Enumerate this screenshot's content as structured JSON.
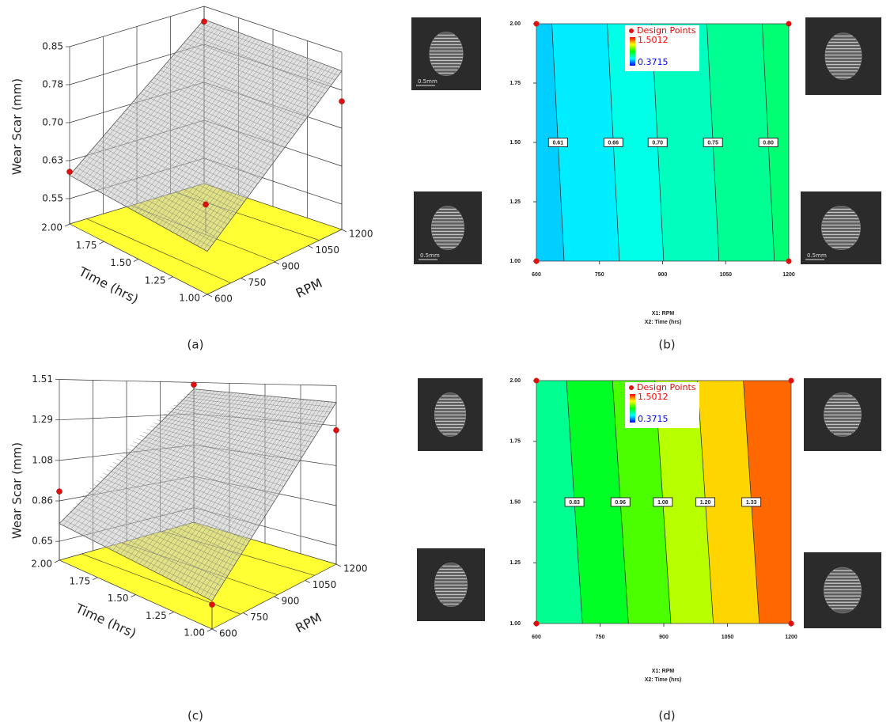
{
  "chart_data": [
    {
      "type": "surface3d",
      "caption": "(a)",
      "zlabel": "Wear Scar (mm)",
      "xlabel": "RPM",
      "ylabel": "Time (hrs)",
      "x": [
        600,
        1200
      ],
      "y": [
        1,
        2
      ],
      "z": [
        [
          0.585,
          0.813
        ],
        [
          0.596,
          0.824
        ]
      ],
      "xlim": [
        600,
        1200
      ],
      "xticks": [
        600,
        750,
        900,
        1050,
        1200
      ],
      "ylim": [
        1,
        2
      ],
      "yticks": [
        {
          "value": 1,
          "label": "1.00"
        },
        1.25,
        {
          "value": 1.5,
          "label": "1.50"
        },
        1.75,
        {
          "value": 2,
          "label": "2.00"
        }
      ],
      "zlim": [
        0.5,
        0.85
      ],
      "zticks": [
        0.55,
        {
          "value": 0.625,
          "label": "0.63"
        },
        {
          "value": 0.7,
          "label": "0.70"
        },
        {
          "value": 0.775,
          "label": "0.78"
        },
        0.85
      ],
      "surface_color": "#c8c8c8",
      "floor_color": "#ffff33",
      "point_color": "#e01010",
      "design_points": {
        "x": [
          600,
          900,
          1200,
          1200
        ],
        "y": [
          2,
          1.5,
          2,
          1
        ],
        "z": [
          0.603,
          0.556,
          0.82,
          0.753
        ]
      }
    },
    {
      "type": "contour",
      "caption": "(b)",
      "xlabel": "X1: RPM",
      "ylabel": "X2: Time (hrs)",
      "x": [
        600,
        1200
      ],
      "y": [
        1,
        2
      ],
      "z": [
        [
          0.585,
          0.813
        ],
        [
          0.596,
          0.824
        ]
      ],
      "xlim": [
        600,
        1200
      ],
      "xticks": [
        600,
        750,
        900,
        1050,
        1200
      ],
      "ylim": [
        1,
        2
      ],
      "yticks": [
        {
          "value": 1,
          "label": "1.00"
        },
        1.25,
        {
          "value": 1.5,
          "label": "1.50"
        },
        1.75,
        {
          "value": 2,
          "label": "2.00"
        }
      ],
      "contour_levels": [
        0.61,
        0.66,
        0.7,
        0.75,
        0.8
      ],
      "contour_labels": [
        "0.61",
        "0.66",
        "0.70",
        "0.75",
        "0.80"
      ],
      "legend_label": "Design Points",
      "colorbar_max": 1.5012,
      "colorbar_min": 0.3715,
      "point_color": "#e01010",
      "design_points": {
        "x": [
          600,
          600,
          1200,
          1200
        ],
        "y": [
          1,
          2,
          1,
          2
        ]
      },
      "micrograph_labels": [
        "0.5mm",
        "0.5mm",
        "0.5mm"
      ]
    },
    {
      "type": "surface3d",
      "caption": "(c)",
      "zlabel": "Wear Scar (mm)",
      "xlabel": "RPM",
      "ylabel": "Time (hrs)",
      "x": [
        600,
        1200
      ],
      "y": [
        1,
        2
      ],
      "z": [
        [
          0.7,
          1.42
        ],
        [
          0.745,
          1.465
        ]
      ],
      "xlim": [
        600,
        1200
      ],
      "xticks": [
        600,
        750,
        900,
        1050,
        1200
      ],
      "ylim": [
        1,
        2
      ],
      "yticks": [
        {
          "value": 1,
          "label": "1.00"
        },
        1.25,
        {
          "value": 1.5,
          "label": "1.50"
        },
        1.75,
        {
          "value": 2,
          "label": "2.00"
        }
      ],
      "zlim": [
        0.55,
        1.51
      ],
      "zticks": [
        0.65,
        {
          "value": 0.865,
          "label": "0.86"
        },
        1.08,
        {
          "value": 1.295,
          "label": "1.29"
        },
        1.51
      ],
      "surface_color": "#c8c8c8",
      "floor_color": "#ffff33",
      "point_color": "#e01010",
      "design_points": {
        "x": [
          600,
          1200,
          1200,
          600
        ],
        "y": [
          2,
          2,
          1,
          1
        ],
        "z": [
          0.915,
          1.495,
          1.27,
          0.68
        ]
      }
    },
    {
      "type": "contour",
      "caption": "(d)",
      "xlabel": "X1: RPM",
      "ylabel": "X2: Time (hrs)",
      "x": [
        600,
        1200
      ],
      "y": [
        1,
        2
      ],
      "z": [
        [
          0.7,
          1.42
        ],
        [
          0.745,
          1.465
        ]
      ],
      "xlim": [
        600,
        1200
      ],
      "xticks": [
        600,
        750,
        900,
        1050,
        1200
      ],
      "ylim": [
        1,
        2
      ],
      "yticks": [
        {
          "value": 1,
          "label": "1.00"
        },
        1.25,
        {
          "value": 1.5,
          "label": "1.50"
        },
        1.75,
        {
          "value": 2,
          "label": "2.00"
        }
      ],
      "contour_levels": [
        0.83,
        0.96,
        1.08,
        1.2,
        1.33
      ],
      "contour_labels": [
        "0.83",
        "0.96",
        "1.08",
        "1.20",
        "1.33"
      ],
      "legend_label": "Design Points",
      "colorbar_max": 1.5012,
      "colorbar_min": 0.3715,
      "point_color": "#e01010",
      "design_points": {
        "x": [
          600,
          600,
          1200,
          1200
        ],
        "y": [
          1,
          2,
          1,
          2
        ]
      }
    }
  ]
}
